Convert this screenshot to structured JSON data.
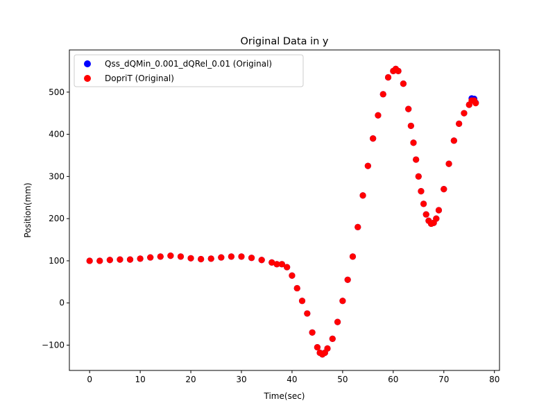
{
  "chart_data": {
    "type": "scatter",
    "title": "Original Data in y",
    "xlabel": "Time(sec)",
    "ylabel": "Position(mm)",
    "xlim": [
      -4,
      81
    ],
    "ylim": [
      -160,
      600
    ],
    "xticks": [
      0,
      10,
      20,
      30,
      40,
      50,
      60,
      70,
      80
    ],
    "yticks": [
      -100,
      0,
      100,
      200,
      300,
      400,
      500
    ],
    "grid": false,
    "legend_position": "top-left",
    "series": [
      {
        "name": "Qss_dQMin_0.001_dQRel_0.01 (Original)",
        "color": "#0000ff",
        "x": [
          0,
          2,
          4,
          6,
          8,
          10,
          12,
          14,
          16,
          18,
          20,
          22,
          24,
          26,
          28,
          30,
          32,
          34,
          36,
          37,
          38,
          39,
          40,
          41,
          42,
          43,
          44,
          45,
          45.5,
          46,
          46.5,
          47,
          48,
          49,
          50,
          51,
          52,
          53,
          54,
          55,
          56,
          57,
          58,
          59,
          60,
          60.5,
          61,
          62,
          63,
          63.5,
          64,
          64.5,
          65,
          65.5,
          66,
          66.5,
          67,
          67.5,
          68,
          68.5,
          69,
          70,
          71,
          72,
          73,
          74,
          75,
          75.5,
          76,
          76.3
        ],
        "y": [
          100,
          100,
          102,
          103,
          103,
          105,
          108,
          110,
          112,
          110,
          106,
          104,
          105,
          108,
          110,
          110,
          107,
          102,
          96,
          92,
          92,
          85,
          65,
          35,
          5,
          -25,
          -70,
          -105,
          -118,
          -122,
          -118,
          -108,
          -85,
          -45,
          5,
          55,
          110,
          180,
          255,
          325,
          390,
          445,
          495,
          535,
          550,
          555,
          550,
          520,
          460,
          420,
          380,
          340,
          300,
          265,
          235,
          210,
          195,
          188,
          190,
          200,
          220,
          270,
          330,
          385,
          425,
          450,
          470,
          485,
          484,
          475
        ]
      },
      {
        "name": "DopriT (Original)",
        "color": "#ff0000",
        "x": [
          0,
          2,
          4,
          6,
          8,
          10,
          12,
          14,
          16,
          18,
          20,
          22,
          24,
          26,
          28,
          30,
          32,
          34,
          36,
          37,
          38,
          39,
          40,
          41,
          42,
          43,
          44,
          45,
          45.5,
          46,
          46.5,
          47,
          48,
          49,
          50,
          51,
          52,
          53,
          54,
          55,
          56,
          57,
          58,
          59,
          60,
          60.5,
          61,
          62,
          63,
          63.5,
          64,
          64.5,
          65,
          65.5,
          66,
          66.5,
          67,
          67.5,
          68,
          68.5,
          69,
          70,
          71,
          72,
          73,
          74,
          75,
          75.5,
          76,
          76.3
        ],
        "y": [
          100,
          100,
          102,
          103,
          103,
          105,
          108,
          110,
          112,
          110,
          106,
          104,
          105,
          108,
          110,
          110,
          107,
          102,
          96,
          92,
          92,
          85,
          65,
          35,
          5,
          -25,
          -70,
          -105,
          -118,
          -122,
          -118,
          -108,
          -85,
          -45,
          5,
          55,
          110,
          180,
          255,
          325,
          390,
          445,
          495,
          535,
          550,
          555,
          550,
          520,
          460,
          420,
          380,
          340,
          300,
          265,
          235,
          210,
          195,
          188,
          190,
          200,
          220,
          270,
          330,
          385,
          425,
          450,
          470,
          480,
          480,
          474
        ]
      }
    ]
  }
}
